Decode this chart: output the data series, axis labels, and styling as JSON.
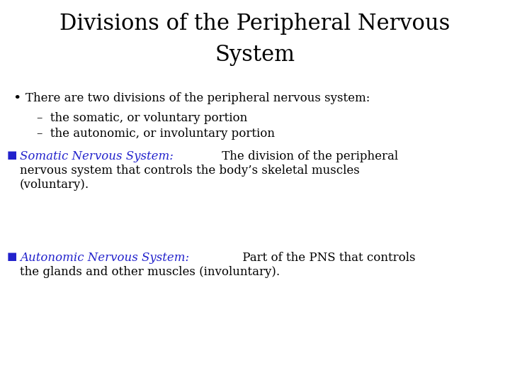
{
  "background_color": "#ffffff",
  "title_line1": "Divisions of the Peripheral Nervous",
  "title_line2": "System",
  "title_fontsize": 22,
  "title_color": "#000000",
  "title_font": "serif",
  "bullet_color": "#000000",
  "blue_color": "#2222cc",
  "body_fontsize": 12,
  "body_font": "serif",
  "bullet1": "There are two divisions of the peripheral nervous system:",
  "sub1": "–  the somatic, or voluntary portion",
  "sub2": "–  the autonomic, or involuntary portion",
  "section1_label": "Somatic Nervous System:",
  "section1_rest": " The division of the peripheral",
  "section1_line2": "nervous system that controls the body’s skeletal muscles",
  "section1_line3": "(voluntary).",
  "section2_label": "Autonomic Nervous System:",
  "section2_rest": " Part of the PNS that controls",
  "section2_line2": "the glands and other muscles (involuntary)."
}
